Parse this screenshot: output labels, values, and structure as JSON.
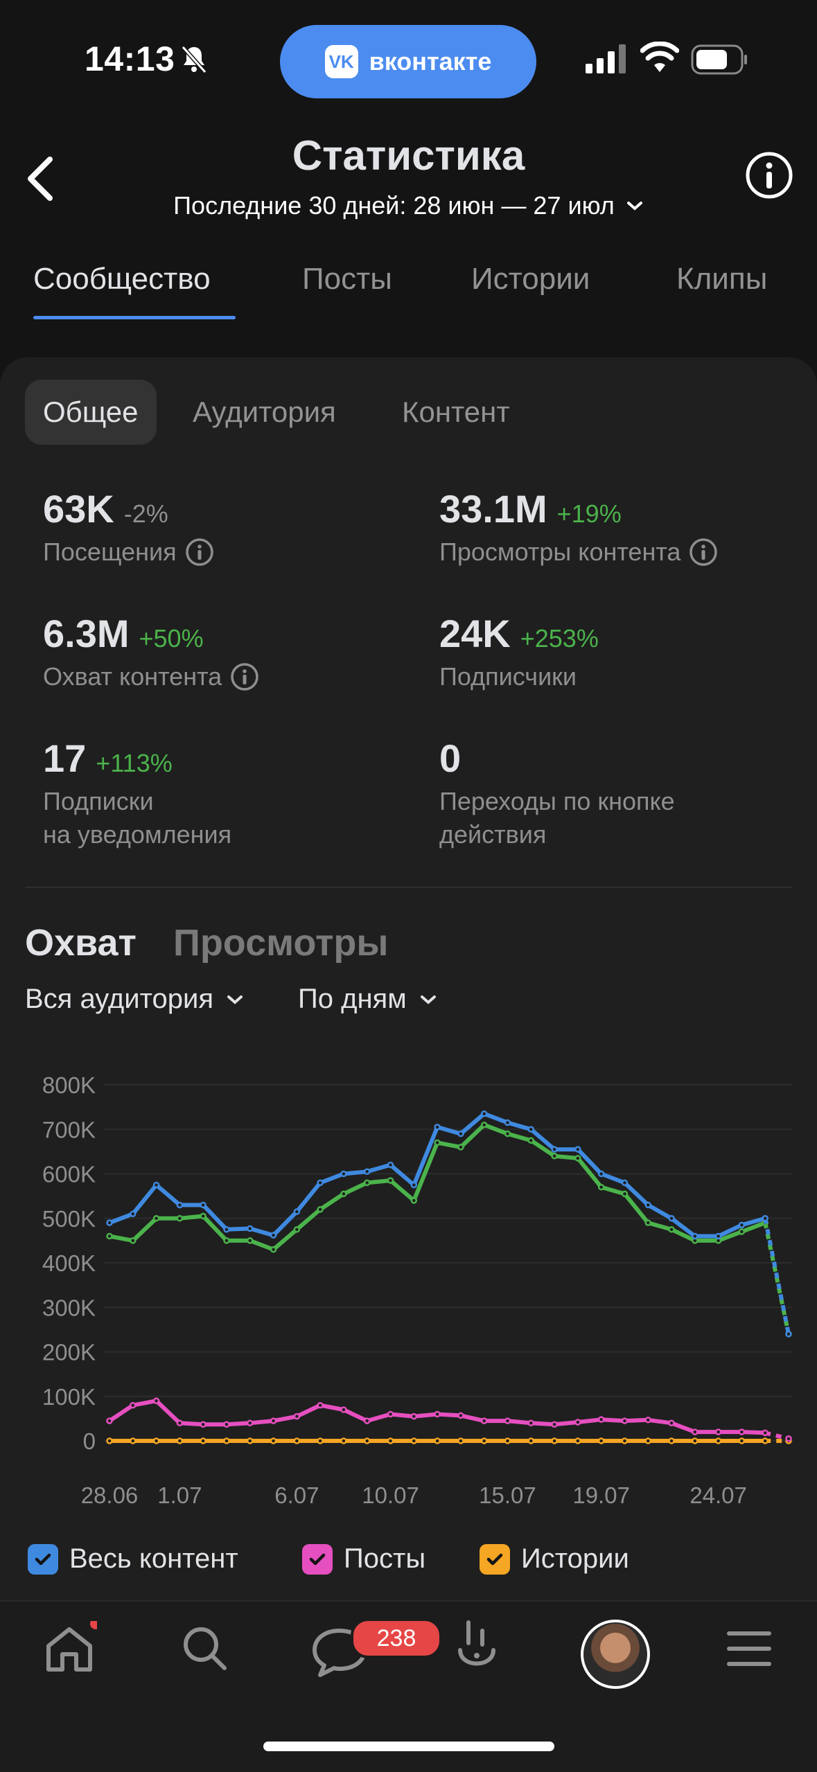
{
  "status_bar": {
    "time": "14:13",
    "app_pill": "вконтакте",
    "app_pill_logo": "VK"
  },
  "header": {
    "title": "Статистика",
    "period": "Последние 30 дней: 28 июн — 27 июл"
  },
  "tabs": [
    "Сообщество",
    "Посты",
    "Истории",
    "Клипы"
  ],
  "segments": [
    "Общее",
    "Аудитория",
    "Контент"
  ],
  "stats": [
    {
      "value": "63K",
      "delta": "-2%",
      "label": "Посещения"
    },
    {
      "value": "33.1M",
      "delta": "+19%",
      "label": "Просмотры контента"
    },
    {
      "value": "6.3M",
      "delta": "+50%",
      "label": "Охват контента"
    },
    {
      "value": "24K",
      "delta": "+253%",
      "label": "Подписчики"
    },
    {
      "value": "17",
      "delta": "+113%",
      "label_line1": "Подписки",
      "label_line2": "на уведомления"
    },
    {
      "value": "0",
      "label_line1": "Переходы по кнопке",
      "label_line2": "действия"
    }
  ],
  "reach_tabs": [
    "Охват",
    "Просмотры"
  ],
  "filters": {
    "audience": "Вся аудитория",
    "period": "По дням"
  },
  "legend": [
    "Весь контент",
    "Посты",
    "Истории"
  ],
  "tabbar": {
    "messages_badge": "238"
  },
  "chart_data": {
    "type": "line",
    "x_tick_labels": [
      "28.06",
      "1.07",
      "6.07",
      "10.07",
      "15.07",
      "19.07",
      "24.07"
    ],
    "y_tick_labels": [
      "800K",
      "700K",
      "600K",
      "500K",
      "400K",
      "300K",
      "200K",
      "100K",
      "0"
    ],
    "ylim": [
      0,
      800000
    ],
    "x": [
      "28.06",
      "29.06",
      "30.06",
      "1.07",
      "2.07",
      "3.07",
      "4.07",
      "5.07",
      "6.07",
      "7.07",
      "8.07",
      "9.07",
      "10.07",
      "11.07",
      "12.07",
      "13.07",
      "14.07",
      "15.07",
      "16.07",
      "17.07",
      "18.07",
      "19.07",
      "20.07",
      "21.07",
      "22.07",
      "23.07",
      "24.07",
      "25.07",
      "26.07",
      "27.07"
    ],
    "series": [
      {
        "name": "Весь контент",
        "color": "#3f8ae0",
        "values": [
          490000,
          510000,
          575000,
          530000,
          530000,
          475000,
          477000,
          462000,
          515000,
          580000,
          600000,
          605000,
          620000,
          575000,
          705000,
          690000,
          735000,
          715000,
          700000,
          655000,
          655000,
          600000,
          580000,
          530000,
          500000,
          460000,
          460000,
          485000,
          500000,
          240000
        ]
      },
      {
        "name": "Посты",
        "color": "#e64fc0",
        "values": [
          45000,
          80000,
          90000,
          40000,
          37000,
          37000,
          40000,
          45000,
          55000,
          80000,
          70000,
          45000,
          60000,
          55000,
          60000,
          57000,
          45000,
          45000,
          40000,
          37000,
          42000,
          48000,
          45000,
          47000,
          40000,
          20000,
          20000,
          20000,
          18000,
          5000
        ]
      },
      {
        "name": "Истории",
        "color": "#f5a623",
        "values": [
          0,
          0,
          0,
          0,
          0,
          0,
          0,
          0,
          0,
          0,
          0,
          0,
          0,
          0,
          0,
          0,
          0,
          0,
          0,
          0,
          0,
          0,
          0,
          0,
          0,
          0,
          0,
          0,
          0,
          0
        ]
      },
      {
        "color": "#4bb34b",
        "values": [
          460000,
          450000,
          500000,
          500000,
          505000,
          450000,
          450000,
          430000,
          475000,
          520000,
          555000,
          580000,
          585000,
          540000,
          670000,
          660000,
          710000,
          690000,
          675000,
          640000,
          635000,
          570000,
          555000,
          490000,
          475000,
          450000,
          450000,
          470000,
          490000,
          240000
        ]
      }
    ]
  }
}
